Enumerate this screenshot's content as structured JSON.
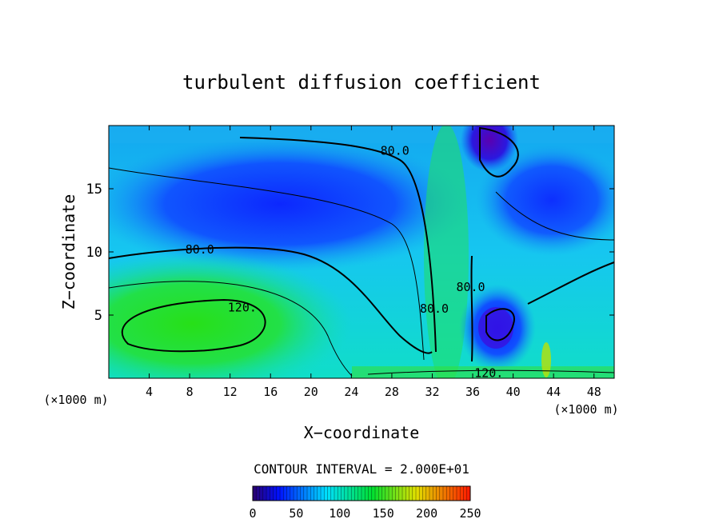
{
  "chart_data": {
    "type": "heatmap",
    "title": "turbulent diffusion coefficient",
    "xlabel": "X−coordinate",
    "ylabel": "Z−coordinate",
    "x_unit_left": "(×1000 m)",
    "x_unit_right": "(×1000 m)",
    "xlim": [
      0,
      50
    ],
    "ylim": [
      0,
      20
    ],
    "x_ticks": [
      4,
      8,
      12,
      16,
      20,
      24,
      28,
      32,
      36,
      40,
      44,
      48
    ],
    "y_ticks": [
      5,
      10,
      15
    ],
    "contour_interval_text": "CONTOUR INTERVAL = 2.000E+01",
    "contour_labels": [
      {
        "text": "80.0",
        "x": 9.0,
        "y": 10.2
      },
      {
        "text": "120.",
        "x": 13.2,
        "y": 5.6
      },
      {
        "text": "80.0",
        "x": 28.3,
        "y": 18.0
      },
      {
        "text": "80.0",
        "x": 32.2,
        "y": 5.5
      },
      {
        "text": "80.0",
        "x": 35.8,
        "y": 7.2
      },
      {
        "text": "120.",
        "x": 37.6,
        "y": 0.4
      }
    ],
    "colorbar": {
      "min": 0,
      "max": 250,
      "ticks": [
        0,
        50,
        100,
        150,
        200,
        250
      ],
      "colors": [
        "#2a006e",
        "#0011ff",
        "#00e0ff",
        "#00e030",
        "#e0e000",
        "#ff1800"
      ]
    }
  }
}
